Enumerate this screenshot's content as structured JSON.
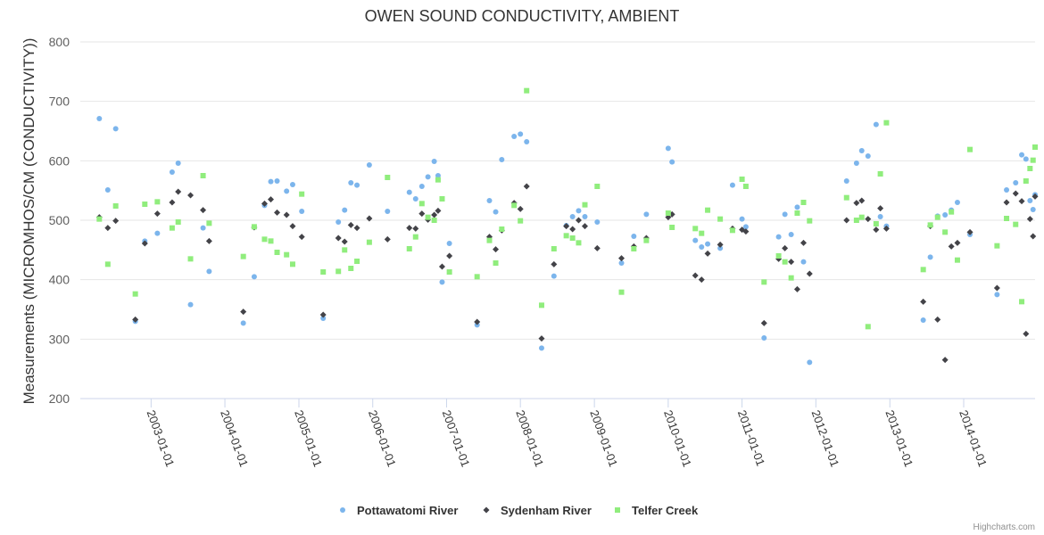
{
  "chart_data": {
    "type": "scatter",
    "title": "OWEN SOUND CONDUCTIVITY, AMBIENT",
    "ylabel": "Measurements (MICROMHOS/CM (CONDUCTIVITY))",
    "xlabel": "",
    "ylim": [
      200,
      800
    ],
    "xlim": [
      "2002-01-16",
      "2014-12-20"
    ],
    "y_ticks": [
      200,
      300,
      400,
      500,
      600,
      700,
      800
    ],
    "x_ticks": [
      "2003-01-01",
      "2004-01-01",
      "2005-01-01",
      "2006-01-01",
      "2007-01-01",
      "2008-01-01",
      "2009-01-01",
      "2010-01-01",
      "2011-01-01",
      "2012-01-01",
      "2013-01-01",
      "2014-01-01"
    ],
    "grid": true,
    "legend_position": "bottom-center",
    "series": [
      {
        "name": "Pottawatomi River",
        "color": "#7cb5ec",
        "marker": "circle",
        "points": [
          [
            "2002-04-20",
            671
          ],
          [
            "2002-06-01",
            551
          ],
          [
            "2002-07-10",
            654
          ],
          [
            "2002-10-15",
            330
          ],
          [
            "2002-12-01",
            465
          ],
          [
            "2003-02-01",
            478
          ],
          [
            "2003-04-15",
            581
          ],
          [
            "2003-05-15",
            596
          ],
          [
            "2003-07-15",
            358
          ],
          [
            "2003-09-15",
            487
          ],
          [
            "2003-10-15",
            414
          ],
          [
            "2004-04-01",
            327
          ],
          [
            "2004-05-25",
            405
          ],
          [
            "2004-07-15",
            525
          ],
          [
            "2004-08-15",
            565
          ],
          [
            "2004-09-15",
            566
          ],
          [
            "2004-11-01",
            549
          ],
          [
            "2004-12-01",
            560
          ],
          [
            "2005-01-15",
            515
          ],
          [
            "2005-05-01",
            335
          ],
          [
            "2005-07-15",
            497
          ],
          [
            "2005-08-15",
            517
          ],
          [
            "2005-09-15",
            563
          ],
          [
            "2005-10-15",
            559
          ],
          [
            "2005-12-15",
            593
          ],
          [
            "2006-03-15",
            515
          ],
          [
            "2006-07-01",
            547
          ],
          [
            "2006-08-01",
            536
          ],
          [
            "2006-09-01",
            557
          ],
          [
            "2006-10-01",
            573
          ],
          [
            "2006-11-01",
            599
          ],
          [
            "2006-11-20",
            575
          ],
          [
            "2006-12-10",
            396
          ],
          [
            "2007-01-15",
            461
          ],
          [
            "2007-06-01",
            324
          ],
          [
            "2007-08-01",
            533
          ],
          [
            "2007-09-01",
            514
          ],
          [
            "2007-10-01",
            602
          ],
          [
            "2007-12-01",
            641
          ],
          [
            "2008-01-01",
            645
          ],
          [
            "2008-02-01",
            632
          ],
          [
            "2008-04-15",
            285
          ],
          [
            "2008-06-15",
            406
          ],
          [
            "2008-08-15",
            491
          ],
          [
            "2008-09-15",
            506
          ],
          [
            "2008-10-15",
            516
          ],
          [
            "2008-11-15",
            506
          ],
          [
            "2009-01-15",
            497
          ],
          [
            "2009-05-15",
            428
          ],
          [
            "2009-07-15",
            473
          ],
          [
            "2009-09-15",
            510
          ],
          [
            "2010-01-01",
            621
          ],
          [
            "2010-01-20",
            598
          ],
          [
            "2010-05-15",
            466
          ],
          [
            "2010-06-15",
            455
          ],
          [
            "2010-07-15",
            460
          ],
          [
            "2010-09-15",
            453
          ],
          [
            "2010-11-15",
            559
          ],
          [
            "2011-01-01",
            502
          ],
          [
            "2011-01-20",
            489
          ],
          [
            "2011-04-20",
            302
          ],
          [
            "2011-07-01",
            472
          ],
          [
            "2011-08-01",
            510
          ],
          [
            "2011-09-01",
            476
          ],
          [
            "2011-10-01",
            522
          ],
          [
            "2011-11-01",
            430
          ],
          [
            "2011-12-01",
            261
          ],
          [
            "2012-06-01",
            566
          ],
          [
            "2012-07-20",
            596
          ],
          [
            "2012-08-15",
            617
          ],
          [
            "2012-09-15",
            608
          ],
          [
            "2012-10-25",
            661
          ],
          [
            "2012-11-15",
            506
          ],
          [
            "2012-12-15",
            490
          ],
          [
            "2013-06-15",
            332
          ],
          [
            "2013-07-20",
            438
          ],
          [
            "2013-08-25",
            507
          ],
          [
            "2013-10-01",
            509
          ],
          [
            "2013-11-01",
            517
          ],
          [
            "2013-12-01",
            530
          ],
          [
            "2014-02-01",
            476
          ],
          [
            "2014-06-15",
            375
          ],
          [
            "2014-08-01",
            551
          ],
          [
            "2014-09-15",
            563
          ],
          [
            "2014-10-15",
            610
          ],
          [
            "2014-11-05",
            603
          ],
          [
            "2014-11-25",
            533
          ],
          [
            "2014-12-10",
            518
          ],
          [
            "2014-12-20",
            543
          ]
        ]
      },
      {
        "name": "Sydenham River",
        "color": "#434348",
        "marker": "diamond",
        "points": [
          [
            "2002-04-20",
            505
          ],
          [
            "2002-06-01",
            487
          ],
          [
            "2002-07-10",
            499
          ],
          [
            "2002-10-15",
            333
          ],
          [
            "2002-12-01",
            461
          ],
          [
            "2003-02-01",
            511
          ],
          [
            "2003-04-15",
            530
          ],
          [
            "2003-05-15",
            548
          ],
          [
            "2003-07-15",
            542
          ],
          [
            "2003-09-15",
            517
          ],
          [
            "2003-10-15",
            465
          ],
          [
            "2004-04-01",
            346
          ],
          [
            "2004-05-25",
            488
          ],
          [
            "2004-07-15",
            528
          ],
          [
            "2004-08-15",
            535
          ],
          [
            "2004-09-15",
            513
          ],
          [
            "2004-11-01",
            509
          ],
          [
            "2004-12-01",
            490
          ],
          [
            "2005-01-15",
            472
          ],
          [
            "2005-05-01",
            341
          ],
          [
            "2005-07-15",
            470
          ],
          [
            "2005-08-15",
            464
          ],
          [
            "2005-09-15",
            492
          ],
          [
            "2005-10-15",
            487
          ],
          [
            "2005-12-15",
            503
          ],
          [
            "2006-03-15",
            468
          ],
          [
            "2006-07-01",
            487
          ],
          [
            "2006-08-01",
            486
          ],
          [
            "2006-09-01",
            511
          ],
          [
            "2006-10-01",
            501
          ],
          [
            "2006-11-01",
            509
          ],
          [
            "2006-11-20",
            516
          ],
          [
            "2006-12-10",
            422
          ],
          [
            "2007-01-15",
            440
          ],
          [
            "2007-06-01",
            329
          ],
          [
            "2007-08-01",
            472
          ],
          [
            "2007-09-01",
            451
          ],
          [
            "2007-10-01",
            483
          ],
          [
            "2007-12-01",
            529
          ],
          [
            "2008-01-01",
            519
          ],
          [
            "2008-02-01",
            557
          ],
          [
            "2008-04-15",
            301
          ],
          [
            "2008-06-15",
            426
          ],
          [
            "2008-08-15",
            490
          ],
          [
            "2008-09-15",
            485
          ],
          [
            "2008-10-15",
            500
          ],
          [
            "2008-11-15",
            490
          ],
          [
            "2009-01-15",
            453
          ],
          [
            "2009-05-15",
            436
          ],
          [
            "2009-07-15",
            456
          ],
          [
            "2009-09-15",
            470
          ],
          [
            "2010-01-01",
            505
          ],
          [
            "2010-01-20",
            510
          ],
          [
            "2010-05-15",
            407
          ],
          [
            "2010-06-15",
            400
          ],
          [
            "2010-07-15",
            444
          ],
          [
            "2010-09-15",
            459
          ],
          [
            "2010-11-15",
            486
          ],
          [
            "2011-01-01",
            484
          ],
          [
            "2011-01-20",
            481
          ],
          [
            "2011-04-20",
            327
          ],
          [
            "2011-07-01",
            435
          ],
          [
            "2011-08-01",
            453
          ],
          [
            "2011-09-01",
            430
          ],
          [
            "2011-10-01",
            384
          ],
          [
            "2011-11-01",
            462
          ],
          [
            "2011-12-01",
            410
          ],
          [
            "2012-06-01",
            500
          ],
          [
            "2012-07-20",
            529
          ],
          [
            "2012-08-15",
            533
          ],
          [
            "2012-09-15",
            502
          ],
          [
            "2012-10-25",
            484
          ],
          [
            "2012-11-15",
            520
          ],
          [
            "2012-12-15",
            486
          ],
          [
            "2013-06-15",
            363
          ],
          [
            "2013-07-20",
            490
          ],
          [
            "2013-08-25",
            333
          ],
          [
            "2013-10-01",
            265
          ],
          [
            "2013-11-01",
            456
          ],
          [
            "2013-12-01",
            462
          ],
          [
            "2014-02-01",
            480
          ],
          [
            "2014-06-15",
            386
          ],
          [
            "2014-08-01",
            530
          ],
          [
            "2014-09-15",
            545
          ],
          [
            "2014-10-15",
            532
          ],
          [
            "2014-11-05",
            309
          ],
          [
            "2014-11-25",
            502
          ],
          [
            "2014-12-10",
            473
          ],
          [
            "2014-12-20",
            540
          ]
        ]
      },
      {
        "name": "Telfer Creek",
        "color": "#90ed7d",
        "marker": "square",
        "points": [
          [
            "2002-04-20",
            502
          ],
          [
            "2002-06-01",
            426
          ],
          [
            "2002-07-10",
            524
          ],
          [
            "2002-10-15",
            376
          ],
          [
            "2002-12-01",
            527
          ],
          [
            "2003-02-01",
            531
          ],
          [
            "2003-04-15",
            487
          ],
          [
            "2003-05-15",
            497
          ],
          [
            "2003-07-15",
            435
          ],
          [
            "2003-09-15",
            575
          ],
          [
            "2003-10-15",
            495
          ],
          [
            "2004-04-01",
            439
          ],
          [
            "2004-05-25",
            489
          ],
          [
            "2004-07-15",
            468
          ],
          [
            "2004-08-15",
            465
          ],
          [
            "2004-09-15",
            446
          ],
          [
            "2004-11-01",
            442
          ],
          [
            "2004-12-01",
            426
          ],
          [
            "2005-01-15",
            544
          ],
          [
            "2005-05-01",
            413
          ],
          [
            "2005-07-15",
            414
          ],
          [
            "2005-08-15",
            450
          ],
          [
            "2005-09-15",
            419
          ],
          [
            "2005-10-15",
            431
          ],
          [
            "2005-12-15",
            463
          ],
          [
            "2006-03-15",
            572
          ],
          [
            "2006-07-01",
            452
          ],
          [
            "2006-08-01",
            472
          ],
          [
            "2006-09-01",
            528
          ],
          [
            "2006-10-01",
            505
          ],
          [
            "2006-11-01",
            500
          ],
          [
            "2006-11-20",
            568
          ],
          [
            "2006-12-10",
            536
          ],
          [
            "2007-01-15",
            413
          ],
          [
            "2007-06-01",
            405
          ],
          [
            "2007-08-01",
            466
          ],
          [
            "2007-09-01",
            428
          ],
          [
            "2007-10-01",
            485
          ],
          [
            "2007-12-01",
            525
          ],
          [
            "2008-01-01",
            499
          ],
          [
            "2008-02-01",
            718
          ],
          [
            "2008-04-15",
            357
          ],
          [
            "2008-06-15",
            452
          ],
          [
            "2008-08-15",
            474
          ],
          [
            "2008-09-15",
            470
          ],
          [
            "2008-10-15",
            462
          ],
          [
            "2008-11-15",
            526
          ],
          [
            "2009-01-15",
            557
          ],
          [
            "2009-05-15",
            379
          ],
          [
            "2009-07-15",
            452
          ],
          [
            "2009-09-15",
            466
          ],
          [
            "2010-01-01",
            512
          ],
          [
            "2010-01-20",
            488
          ],
          [
            "2010-05-15",
            486
          ],
          [
            "2010-06-15",
            478
          ],
          [
            "2010-07-15",
            517
          ],
          [
            "2010-09-15",
            502
          ],
          [
            "2010-11-15",
            483
          ],
          [
            "2011-01-01",
            569
          ],
          [
            "2011-01-20",
            557
          ],
          [
            "2011-04-20",
            396
          ],
          [
            "2011-07-01",
            440
          ],
          [
            "2011-08-01",
            430
          ],
          [
            "2011-09-01",
            403
          ],
          [
            "2011-10-01",
            512
          ],
          [
            "2011-11-01",
            530
          ],
          [
            "2011-12-01",
            499
          ],
          [
            "2012-06-01",
            538
          ],
          [
            "2012-07-20",
            500
          ],
          [
            "2012-08-15",
            505
          ],
          [
            "2012-09-15",
            321
          ],
          [
            "2012-10-25",
            494
          ],
          [
            "2012-11-15",
            578
          ],
          [
            "2012-12-15",
            664
          ],
          [
            "2013-06-15",
            417
          ],
          [
            "2013-07-20",
            492
          ],
          [
            "2013-08-25",
            505
          ],
          [
            "2013-10-01",
            480
          ],
          [
            "2013-11-01",
            514
          ],
          [
            "2013-12-01",
            433
          ],
          [
            "2014-02-01",
            619
          ],
          [
            "2014-06-15",
            457
          ],
          [
            "2014-08-01",
            503
          ],
          [
            "2014-09-15",
            493
          ],
          [
            "2014-10-15",
            363
          ],
          [
            "2014-11-05",
            566
          ],
          [
            "2014-11-25",
            587
          ],
          [
            "2014-12-10",
            601
          ],
          [
            "2014-12-20",
            623
          ]
        ]
      }
    ]
  },
  "credits": "Highcharts.com"
}
